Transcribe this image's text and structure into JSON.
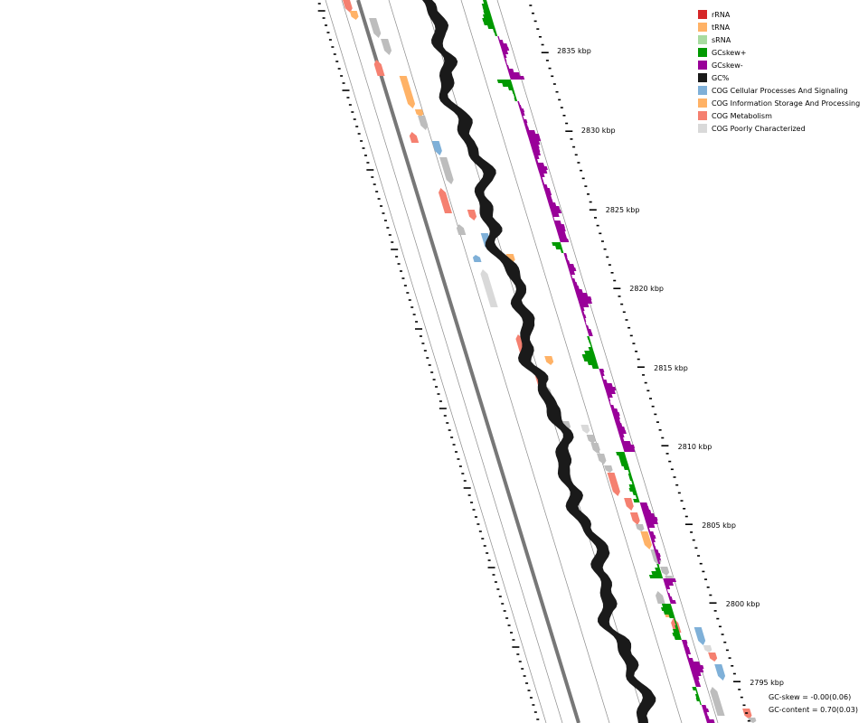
{
  "scale_labels": [
    "2835 kbp",
    "2830 kbp",
    "2825 kbp",
    "2820 kbp",
    "2815 kbp",
    "2810 kbp",
    "2805 kbp",
    "2800 kbp",
    "2795 kbp"
  ],
  "legend": {
    "items": [
      {
        "label": "rRNA",
        "color": "#d62728"
      },
      {
        "label": "tRNA",
        "color": "#ffb266"
      },
      {
        "label": "sRNA",
        "color": "#a8dba0"
      },
      {
        "label": "GCskew+",
        "color": "#009900"
      },
      {
        "label": "GCskew-",
        "color": "#990099"
      },
      {
        "label": "GC%",
        "color": "#1a1a1a"
      },
      {
        "label": "COG Cellular Processes And Signaling",
        "color": "#7fb0d8"
      },
      {
        "label": "COG Information Storage And Processing",
        "color": "#ffb266"
      },
      {
        "label": "COG Metabolism",
        "color": "#f58070"
      },
      {
        "label": "COG Poorly Characterized",
        "color": "#d9d9d9"
      }
    ]
  },
  "stats": {
    "gc_skew": "GC-skew = -0.00(0.06)",
    "gc_content": "GC-content = 0.70(0.03)"
  },
  "colors": {
    "backbone": "#777777",
    "gc_content": "#1a1a1a",
    "gc_skew_pos": "#009900",
    "gc_skew_neg": "#990099",
    "unclassified_gene": "#bdbdbd"
  }
}
